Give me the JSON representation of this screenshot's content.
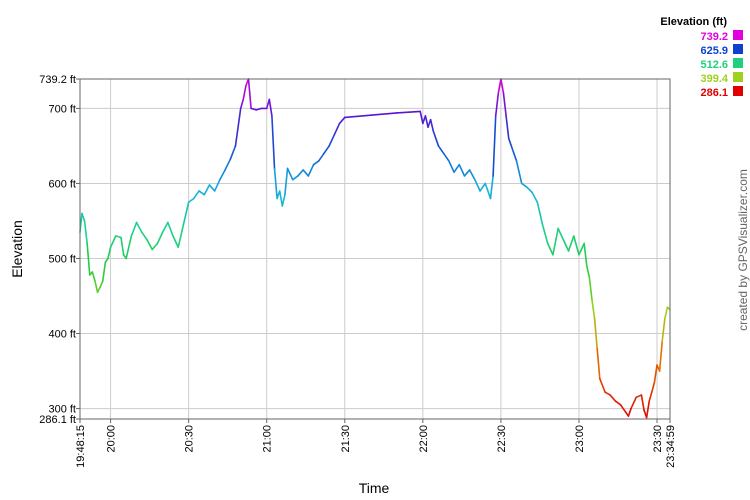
{
  "chart_data": {
    "type": "line",
    "xlabel": "Time",
    "ylabel": "Elevation",
    "ylim": [
      286.1,
      739.2
    ],
    "y_ticks": [
      {
        "value": 739.2,
        "label": "739.2 ft"
      },
      {
        "value": 700,
        "label": "700 ft"
      },
      {
        "value": 600,
        "label": "600 ft"
      },
      {
        "value": 500,
        "label": "500 ft"
      },
      {
        "value": 400,
        "label": "400 ft"
      },
      {
        "value": 300,
        "label": "300 ft"
      },
      {
        "value": 286.1,
        "label": "286.1 ft"
      }
    ],
    "x_range": [
      "19:48:15",
      "23:34:59"
    ],
    "x_ticks": [
      "19:48:15",
      "20:00",
      "20:30",
      "21:00",
      "21:30",
      "22:00",
      "22:30",
      "23:00",
      "23:30",
      "23:34:59"
    ],
    "x_gridlines": [
      "20:00",
      "20:30",
      "21:00",
      "21:30",
      "22:00",
      "22:30",
      "23:00",
      "23:30"
    ],
    "grid": true,
    "legend": {
      "title": "Elevation (ft)",
      "placement": "top-right",
      "entries": [
        {
          "label": "739.2",
          "color": "#e000e0"
        },
        {
          "label": "625.9",
          "color": "#1040d0"
        },
        {
          "label": "512.6",
          "color": "#20d080"
        },
        {
          "label": "399.4",
          "color": "#a0d020"
        },
        {
          "label": "286.1",
          "color": "#e00000"
        }
      ]
    },
    "series": [
      {
        "points": [
          [
            "19:48:15",
            535
          ],
          [
            "19:49",
            560
          ],
          [
            "19:50",
            550
          ],
          [
            "19:51",
            520
          ],
          [
            "19:52",
            478
          ],
          [
            "19:53",
            482
          ],
          [
            "19:54",
            470
          ],
          [
            "19:55",
            455
          ],
          [
            "19:56",
            462
          ],
          [
            "19:57",
            470
          ],
          [
            "19:58",
            495
          ],
          [
            "19:59",
            500
          ],
          [
            "20:00",
            515
          ],
          [
            "20:02",
            530
          ],
          [
            "20:04",
            528
          ],
          [
            "20:05",
            505
          ],
          [
            "20:06",
            500
          ],
          [
            "20:08",
            530
          ],
          [
            "20:10",
            548
          ],
          [
            "20:12",
            535
          ],
          [
            "20:14",
            525
          ],
          [
            "20:16",
            512
          ],
          [
            "20:18",
            520
          ],
          [
            "20:20",
            535
          ],
          [
            "20:22",
            548
          ],
          [
            "20:24",
            530
          ],
          [
            "20:26",
            515
          ],
          [
            "20:28",
            545
          ],
          [
            "20:30",
            575
          ],
          [
            "20:32",
            580
          ],
          [
            "20:34",
            590
          ],
          [
            "20:36",
            585
          ],
          [
            "20:38",
            598
          ],
          [
            "20:40",
            590
          ],
          [
            "20:42",
            605
          ],
          [
            "20:44",
            618
          ],
          [
            "20:46",
            632
          ],
          [
            "20:48",
            650
          ],
          [
            "20:50",
            700
          ],
          [
            "20:51",
            712
          ],
          [
            "20:52",
            730
          ],
          [
            "20:53",
            739.2
          ],
          [
            "20:54",
            700
          ],
          [
            "20:56",
            698
          ],
          [
            "20:58",
            700
          ],
          [
            "21:00",
            700
          ],
          [
            "21:01",
            712
          ],
          [
            "21:02",
            690
          ],
          [
            "21:03",
            620
          ],
          [
            "21:04",
            580
          ],
          [
            "21:05",
            590
          ],
          [
            "21:06",
            570
          ],
          [
            "21:07",
            585
          ],
          [
            "21:08",
            620
          ],
          [
            "21:10",
            605
          ],
          [
            "21:12",
            610
          ],
          [
            "21:14",
            618
          ],
          [
            "21:16",
            610
          ],
          [
            "21:18",
            625
          ],
          [
            "21:20",
            630
          ],
          [
            "21:22",
            640
          ],
          [
            "21:24",
            650
          ],
          [
            "21:26",
            665
          ],
          [
            "21:28",
            680
          ],
          [
            "21:30",
            688
          ],
          [
            "21:40",
            691
          ],
          [
            "21:50",
            694
          ],
          [
            "21:59",
            696
          ],
          [
            "22:00",
            680
          ],
          [
            "22:01",
            690
          ],
          [
            "22:02",
            675
          ],
          [
            "22:03",
            685
          ],
          [
            "22:04",
            670
          ],
          [
            "22:06",
            650
          ],
          [
            "22:08",
            640
          ],
          [
            "22:10",
            630
          ],
          [
            "22:12",
            615
          ],
          [
            "22:14",
            625
          ],
          [
            "22:16",
            610
          ],
          [
            "22:18",
            618
          ],
          [
            "22:20",
            605
          ],
          [
            "22:22",
            590
          ],
          [
            "22:24",
            600
          ],
          [
            "22:26",
            580
          ],
          [
            "22:27",
            610
          ],
          [
            "22:28",
            690
          ],
          [
            "22:29",
            720
          ],
          [
            "22:30",
            739.2
          ],
          [
            "22:31",
            720
          ],
          [
            "22:32",
            690
          ],
          [
            "22:33",
            660
          ],
          [
            "22:34",
            650
          ],
          [
            "22:36",
            630
          ],
          [
            "22:38",
            600
          ],
          [
            "22:40",
            595
          ],
          [
            "22:42",
            588
          ],
          [
            "22:44",
            575
          ],
          [
            "22:46",
            545
          ],
          [
            "22:48",
            520
          ],
          [
            "22:50",
            505
          ],
          [
            "22:52",
            540
          ],
          [
            "22:54",
            525
          ],
          [
            "22:56",
            510
          ],
          [
            "22:58",
            530
          ],
          [
            "23:00",
            505
          ],
          [
            "23:02",
            520
          ],
          [
            "23:03",
            490
          ],
          [
            "23:04",
            475
          ],
          [
            "23:05",
            445
          ],
          [
            "23:06",
            420
          ],
          [
            "23:07",
            380
          ],
          [
            "23:08",
            340
          ],
          [
            "23:10",
            322
          ],
          [
            "23:12",
            318
          ],
          [
            "23:14",
            310
          ],
          [
            "23:16",
            305
          ],
          [
            "23:18",
            295
          ],
          [
            "23:19",
            290
          ],
          [
            "23:20",
            300
          ],
          [
            "23:22",
            315
          ],
          [
            "23:24",
            318
          ],
          [
            "23:25",
            298
          ],
          [
            "23:26",
            288
          ],
          [
            "23:27",
            310
          ],
          [
            "23:28",
            322
          ],
          [
            "23:29",
            335
          ],
          [
            "23:30",
            358
          ],
          [
            "23:31",
            350
          ],
          [
            "23:32",
            390
          ],
          [
            "23:33",
            420
          ],
          [
            "23:34",
            435
          ],
          [
            "23:34:59",
            432
          ]
        ]
      }
    ]
  },
  "credit": "created by GPSVisualizer.com"
}
